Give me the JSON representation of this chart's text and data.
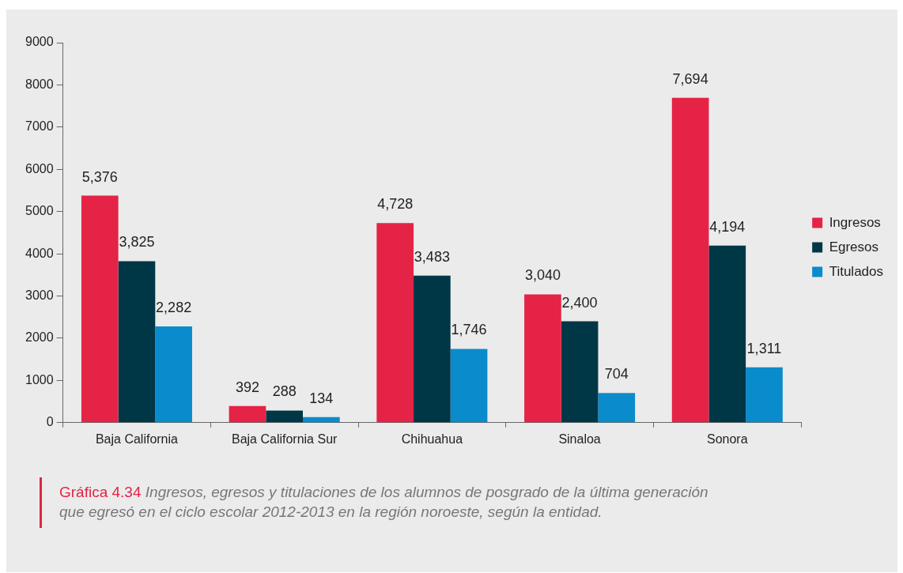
{
  "chart_data": {
    "type": "bar",
    "categories": [
      "Baja California",
      "Baja California Sur",
      "Chihuahua",
      "Sinaloa",
      "Sonora"
    ],
    "series": [
      {
        "name": "Ingresos",
        "color": "#e42346",
        "values": [
          5376,
          392,
          4728,
          3040,
          7694
        ],
        "value_labels": [
          "5,376",
          "392",
          "4,728",
          "3,040",
          "7,694"
        ]
      },
      {
        "name": "Egresos",
        "color": "#003746",
        "values": [
          3825,
          288,
          3483,
          2400,
          4194
        ],
        "value_labels": [
          "3,825",
          "288",
          "3,483",
          "2,400",
          "4,194"
        ]
      },
      {
        "name": "Titulados",
        "color": "#0a8bcc",
        "values": [
          2282,
          134,
          1746,
          704,
          1311
        ],
        "value_labels": [
          "2,282",
          "134",
          "1,746",
          "704",
          "1,311"
        ]
      }
    ],
    "ylim": [
      0,
      9000
    ],
    "yticks": [
      0,
      1000,
      2000,
      3000,
      4000,
      5000,
      6000,
      7000,
      8000,
      9000
    ],
    "grid": false,
    "legend": "right",
    "annotations": [
      "Gráfica 4.34",
      "Ingresos, egresos y titulaciones de los alumnos de posgrado de la última generación que egresó en el ciclo escolar 2012-2013 en la región noroeste, según la entidad."
    ]
  }
}
